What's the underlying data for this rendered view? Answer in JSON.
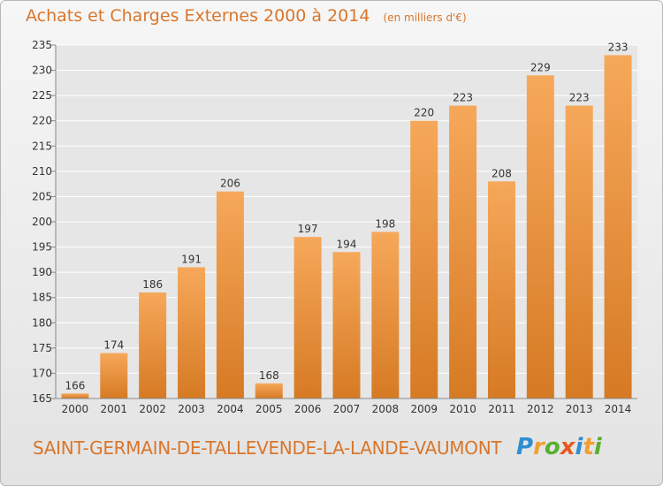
{
  "title": "Achats et Charges Externes 2000 à 2014",
  "unit_note": "(en milliers d'€)",
  "commune": "SAINT-GERMAIN-DE-TALLEVENDE-LA-LANDE-VAUMONT",
  "logo": {
    "letters": [
      "P",
      "r",
      "o",
      "x",
      "i",
      "t",
      "i"
    ],
    "colors": [
      "#2e8fd0",
      "#f0a030",
      "#58b030",
      "#e85a20",
      "#2e8fd0",
      "#f0a030",
      "#58b030"
    ]
  },
  "colors": {
    "bar_top": "#f6a85a",
    "bar_bottom": "#d67a24",
    "title": "#d9762b",
    "grid": "#ffffff"
  },
  "chart_data": {
    "type": "bar",
    "title": "Achats et Charges Externes 2000 à 2014",
    "subtitle": "(en milliers d'€)",
    "categories": [
      "2000",
      "2001",
      "2002",
      "2003",
      "2004",
      "2005",
      "2006",
      "2007",
      "2008",
      "2009",
      "2010",
      "2011",
      "2012",
      "2013",
      "2014"
    ],
    "values": [
      166,
      174,
      186,
      191,
      206,
      168,
      197,
      194,
      198,
      220,
      223,
      208,
      229,
      223,
      233
    ],
    "ylim": [
      165,
      235
    ],
    "yticks": [
      165,
      170,
      175,
      180,
      185,
      190,
      195,
      200,
      205,
      210,
      215,
      220,
      225,
      230,
      235
    ],
    "grid": true,
    "data_labels": true
  }
}
